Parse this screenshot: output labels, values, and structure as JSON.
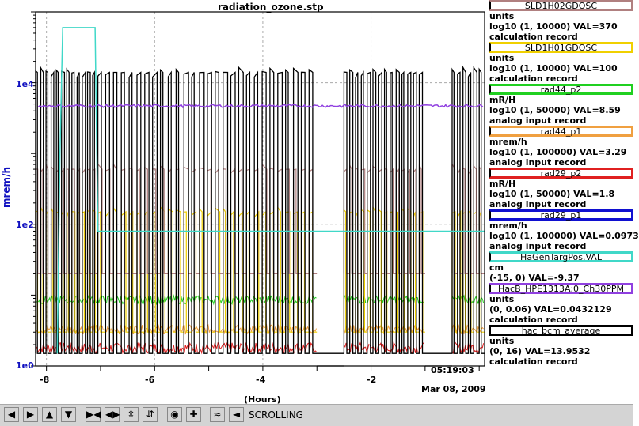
{
  "chart_data": {
    "type": "line",
    "title": "radiation_ozone.stp",
    "ylabel": "mrem/h",
    "xlabel": "(Hours)",
    "x_range": [
      -8.2,
      0.1
    ],
    "y_scale": "log",
    "y_range": [
      1,
      100000
    ],
    "y_ticks": [
      "1e0",
      "1e2",
      "1e4"
    ],
    "x_ticks": [
      "-8",
      "-6",
      "-4",
      "-2"
    ],
    "timestamp": "05:19:03",
    "date": "Mar 08, 2009",
    "grid": true,
    "legend_position": "right",
    "series": [
      {
        "name": "SLD1H02GDOSC",
        "color": "#b08080",
        "units": "units",
        "range": "log10 (1, 10000)",
        "value_text": "VAL=370",
        "record": "calculation record",
        "typical_value": 370
      },
      {
        "name": "SLD1H01GDOSC",
        "color": "#f0d000",
        "units": "units",
        "range": "log10 (1, 10000)",
        "value_text": "VAL=100",
        "record": "calculation record",
        "typical_value": 100
      },
      {
        "name": "rad44_p2",
        "color": "#20d020",
        "units": "mR/H",
        "range": "log10 (1, 50000)",
        "value_text": "VAL=8.59",
        "record": "analog input record",
        "typical_value": 8.59
      },
      {
        "name": "rad44_p1",
        "color": "#f0a040",
        "units": "mrem/h",
        "range": "log10 (1, 100000)",
        "value_text": "VAL=3.29",
        "record": "analog input record",
        "typical_value": 3.29
      },
      {
        "name": "rad29_p2",
        "color": "#e02020",
        "units": "mR/H",
        "range": "log10 (1, 50000)",
        "value_text": "VAL=1.8",
        "record": "analog input record",
        "typical_value": 1.8
      },
      {
        "name": "rad29_p1",
        "color": "#1010d0",
        "units": "mrem/h",
        "range": "log10 (1, 100000)",
        "value_text": "VAL=0.0973",
        "record": "analog input record",
        "typical_value": 0.0973
      },
      {
        "name": "HaGenTargPos.VAL",
        "color": "#40d8c8",
        "units": "cm",
        "range": "(-15, 0)",
        "value_text": "VAL=-9.37",
        "record": "",
        "typical_value": -9.37
      },
      {
        "name": "HacB_HPE1313A:0_Ch30PPM",
        "color": "#9040e0",
        "units": "units",
        "range": "(0, 0.06)",
        "value_text": "VAL=0.0432129",
        "record": "calculation record",
        "typical_value": 0.0432129
      },
      {
        "name": "hac_bcm_average",
        "color": "#000000",
        "units": "units",
        "range": "(0, 16)",
        "value_text": "VAL=13.9532",
        "record": "calculation record",
        "typical_value": 13.9532
      }
    ]
  },
  "toolbar": {
    "label": "SCROLLING",
    "buttons": [
      "arrow-left-icon",
      "arrow-right-icon",
      "arrow-up-icon",
      "arrow-down-icon",
      "zoom-in-x-icon",
      "zoom-out-x-icon",
      "zoom-in-y-icon",
      "zoom-out-y-icon",
      "record-icon",
      "plus-icon",
      "auto-scale-icon",
      "back-icon"
    ]
  }
}
